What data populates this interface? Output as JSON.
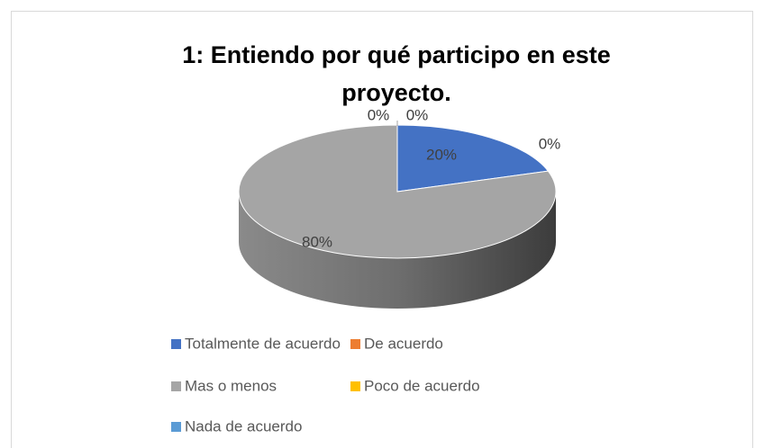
{
  "chart_data": {
    "type": "pie3d",
    "title": "1: Entiendo por qué participo en este proyecto.",
    "categories": [
      "Totalmente de acuerdo",
      "De acuerdo",
      "Mas o menos",
      "Poco de acuerdo",
      "Nada de acuerdo"
    ],
    "values": [
      20,
      0,
      80,
      0,
      0
    ],
    "value_labels": [
      "20%",
      "0%",
      "80%",
      "0%",
      "0%"
    ],
    "colors": [
      "#4472c4",
      "#ed7d31",
      "#a5a5a5",
      "#ffc000",
      "#5b9bd5"
    ]
  }
}
